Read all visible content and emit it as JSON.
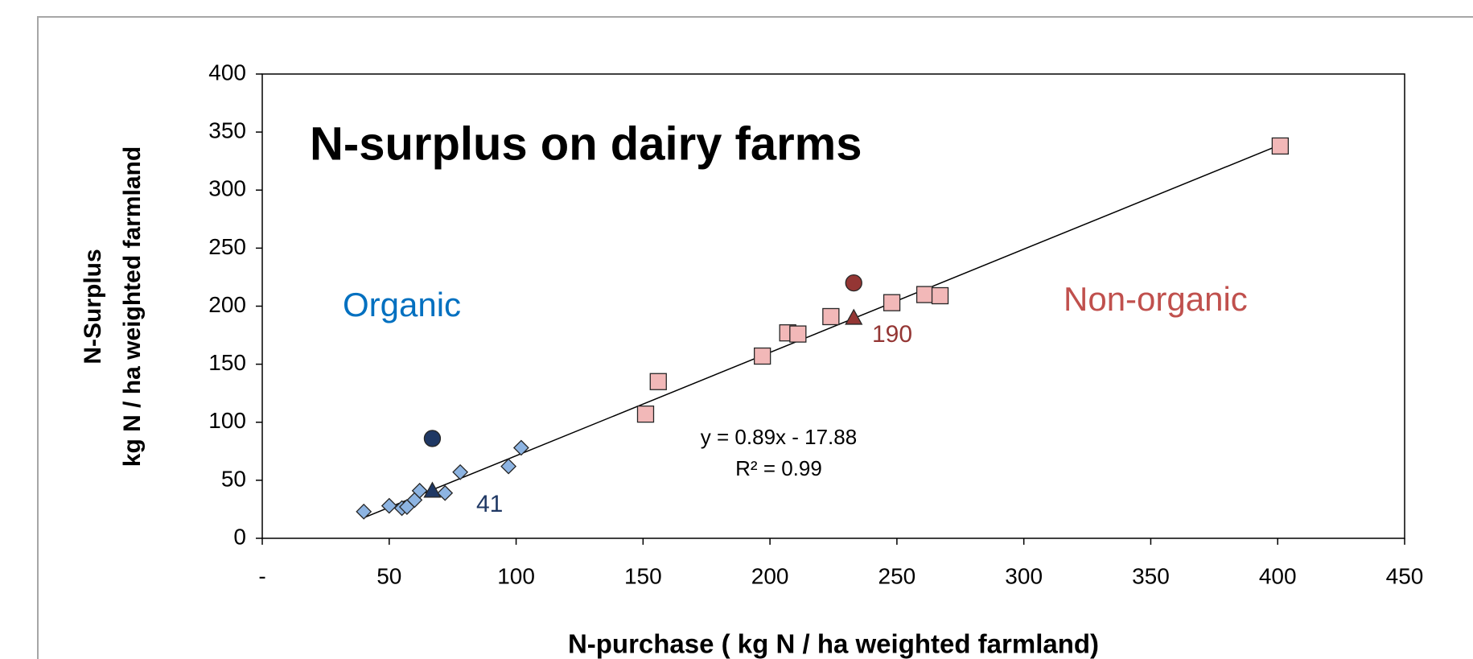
{
  "chart_data": {
    "type": "scatter",
    "title": "N-surplus on dairy farms",
    "x_label": "N-purchase ( kg N / ha weighted farmland)",
    "y_label": [
      "N-Surplus",
      "kg N / ha weighted farmland"
    ],
    "xlim": [
      0,
      450
    ],
    "ylim": [
      0,
      400
    ],
    "xticks": [
      {
        "value": 0,
        "label": "-"
      },
      50,
      100,
      150,
      200,
      250,
      300,
      350,
      400,
      450
    ],
    "yticks": [
      0,
      50,
      100,
      150,
      200,
      250,
      300,
      350,
      400
    ],
    "group_labels": [
      {
        "text": "Organic",
        "color": "#0070c0"
      },
      {
        "text": "Non-organic",
        "color": "#c0504d"
      }
    ],
    "annotations": [
      {
        "text": "41",
        "color": "#1f3864"
      },
      {
        "text": "190",
        "color": "#943634"
      },
      {
        "text": "y = 0.89x - 17.88",
        "color": "#000000"
      },
      {
        "text": "R² = 0.99",
        "color": "#000000"
      }
    ],
    "series": [
      {
        "marker": "line",
        "color": "#000000",
        "x": [
          40,
          401
        ],
        "values": [
          17.72,
          339.01
        ]
      },
      {
        "marker": "diamond",
        "color": "#8db4e2",
        "x": [
          40,
          50,
          55,
          57,
          60,
          62,
          72,
          78,
          97,
          102
        ],
        "values": [
          23,
          28,
          26,
          27,
          33,
          41,
          39,
          57,
          62,
          78
        ]
      },
      {
        "marker": "square",
        "color": "#f2b8b8",
        "x": [
          151,
          156,
          197,
          207,
          211,
          224,
          248,
          261,
          267,
          401
        ],
        "values": [
          107,
          135,
          157,
          177,
          176,
          191,
          203,
          210,
          209,
          338
        ]
      },
      {
        "marker": "triangle",
        "color": "#1f3864",
        "x": [
          67
        ],
        "values": [
          41
        ]
      },
      {
        "marker": "circle",
        "color": "#1f3864",
        "x": [
          67
        ],
        "values": [
          86
        ]
      },
      {
        "marker": "triangle",
        "color": "#943634",
        "x": [
          233
        ],
        "values": [
          190
        ]
      },
      {
        "marker": "circle",
        "color": "#943634",
        "x": [
          233
        ],
        "values": [
          220
        ]
      }
    ]
  }
}
